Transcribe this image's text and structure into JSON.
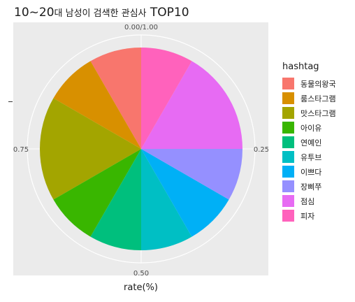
{
  "chart_data": {
    "type": "pie",
    "title_main": "10~20",
    "title_sub": "대 남성이 검색한 관심사",
    "title_tail": " TOP10",
    "xlabel": "rate(%)",
    "legend_title": "hashtag",
    "categories": [
      "동물의왕국",
      "룸스타그램",
      "맛스타그램",
      "아이유",
      "연예인",
      "유투브",
      "이쁘다",
      "장삐쭈",
      "점심",
      "피자"
    ],
    "values": [
      0.085,
      0.085,
      0.17,
      0.085,
      0.085,
      0.085,
      0.085,
      0.085,
      0.17,
      0.085
    ],
    "colors": [
      "#F8766D",
      "#D89000",
      "#A3A500",
      "#39B600",
      "#00BF7D",
      "#00BFC4",
      "#00B0F6",
      "#9590FF",
      "#E76BF3",
      "#FF62BC"
    ],
    "angle_ticks": [
      "0.00/1.00",
      "0.25",
      "0.50",
      "0.75"
    ],
    "legend_placement": "right"
  }
}
